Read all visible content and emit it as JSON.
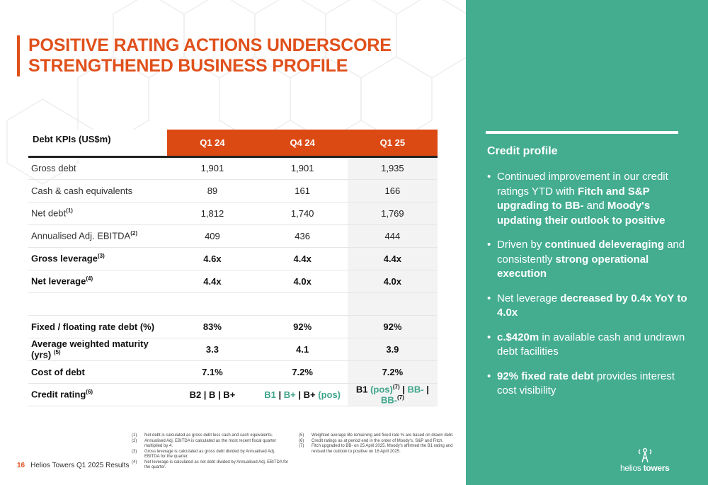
{
  "title": {
    "line1": "POSITIVE RATING ACTIONS UNDERSCORE",
    "line2": "STRENGTHENED BUSINESS PROFILE"
  },
  "table": {
    "heading": "Debt KPIs (US$m)",
    "periods": [
      "Q1 24",
      "Q4 24",
      "Q1 25"
    ],
    "rows": [
      {
        "label": "Gross debt",
        "values": [
          "1,901",
          "1,901",
          "1,935"
        ]
      },
      {
        "label": "Cash & cash equivalents",
        "values": [
          "89",
          "161",
          "166"
        ]
      },
      {
        "label": "Net debt",
        "sup": "(1)",
        "values": [
          "1,812",
          "1,740",
          "1,769"
        ]
      },
      {
        "label": "Annualised Adj. EBITDA",
        "sup": "(2)",
        "values": [
          "409",
          "436",
          "444"
        ]
      },
      {
        "label": "Gross leverage",
        "sup": "(3)",
        "values": [
          "4.6x",
          "4.4x",
          "4.4x"
        ]
      },
      {
        "label": "Net leverage",
        "sup": "(4)",
        "values": [
          "4.4x",
          "4.0x",
          "4.0x"
        ]
      },
      {
        "label": "Fixed / floating rate debt (%)",
        "values": [
          "83%",
          "92%",
          "92%"
        ]
      },
      {
        "label": "Average weighted maturity (yrs)",
        "sup": "(5)",
        "values": [
          "3.3",
          "4.1",
          "3.9"
        ]
      },
      {
        "label": "Cost of debt",
        "values": [
          "7.1%",
          "7.2%",
          "7.2%"
        ]
      },
      {
        "label": "Credit rating",
        "sup": "(6)"
      }
    ],
    "credit_rating": {
      "q1_24": "B2 | B | B+",
      "q4_24_b1": "B1",
      "q4_24_sep1": " | ",
      "q4_24_bplus": "B+",
      "q4_24_sep2": " | ",
      "q4_24_bplus2": "B+",
      "q4_24_pos": " (pos)",
      "q1_25_b1": "B1 ",
      "q1_25_pos": "(pos)",
      "q1_25_sup": "(7)",
      "q1_25_sep1": " | ",
      "q1_25_bbminus1": "BB-",
      "q1_25_sep2": " | ",
      "q1_25_bbminus2": "BB-",
      "q1_25_sup2": "(7)"
    }
  },
  "footnotes_left": [
    {
      "num": "(1)",
      "text": "Net debt is calculated as gross debt less cash and cash equivalents."
    },
    {
      "num": "(2)",
      "text": "Annualised Adj. EBITDA is calculated as the most recent fiscal quarter multiplied by 4."
    },
    {
      "num": "(3)",
      "text": "Gross leverage is calculated as gross debt divided by Annualised Adj. EBITDA for the quarter."
    },
    {
      "num": "(4)",
      "text": "Net leverage is calculated as net debt divided by Annualised Adj. EBITDA for the quarter."
    }
  ],
  "footnotes_right": [
    {
      "num": "(5)",
      "text": "Weighted average life remaining and fixed rate % are based on drawn debt."
    },
    {
      "num": "(6)",
      "text": "Credit ratings as at period end in the order of Moody's, S&P and Fitch."
    },
    {
      "num": "(7)",
      "text": "Fitch upgraded to BB- on 25 April 2025. Moody's affirmed the B1 rating and revised the outlook to positive on 16 April 2025."
    }
  ],
  "footer": {
    "page_number": "16",
    "doc_title": "Helios Towers Q1 2025 Results"
  },
  "side": {
    "heading": "Credit profile",
    "b1_a": "Continued improvement in our credit ratings YTD with ",
    "b1_b": "Fitch and S&P upgrading to BB-",
    "b1_c": " and ",
    "b1_d": "Moody's updating their outlook to positive",
    "b2_a": "Driven by ",
    "b2_b": "continued deleveraging",
    "b2_c": " and consistently ",
    "b2_d": "strong operational execution",
    "b3_a": "Net leverage ",
    "b3_b": "decreased by 0.4x YoY to 4.0x",
    "b4_a": "c.$420m",
    "b4_b": " in available cash and undrawn debt facilities",
    "b5_a": "92% fixed rate debt",
    "b5_b": " provides interest cost visibility"
  },
  "logo": {
    "word1": "helios",
    "word2": "towers",
    "icon": "tower-icon"
  },
  "colors": {
    "accent": "#e0501b",
    "header_fill": "#dc4a14",
    "panel": "#44ad90",
    "teal_text": "#3fa58b"
  }
}
